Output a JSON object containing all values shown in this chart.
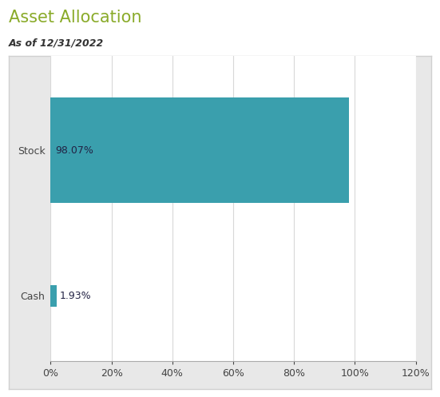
{
  "title": "Asset Allocation",
  "subtitle": "As of 12/31/2022",
  "categories": [
    "Stock",
    "Cash"
  ],
  "values": [
    98.07,
    1.93
  ],
  "labels": [
    "98.07%",
    "1.93%"
  ],
  "bar_color": "#3a9fad",
  "title_color": "#8aab2a",
  "subtitle_color": "#333333",
  "label_color": "#222244",
  "axis_label_color": "#444444",
  "background_color": "#ffffff",
  "plot_bg_color": "#ffffff",
  "chart_border_color": "#d0d0d0",
  "outer_bg_color": "#e8e8e8",
  "xlim": [
    0,
    120
  ],
  "xticks": [
    0,
    20,
    40,
    60,
    80,
    100,
    120
  ],
  "grid_color": "#d8d8d8",
  "title_fontsize": 15,
  "subtitle_fontsize": 9,
  "label_fontsize": 9,
  "ytick_fontsize": 9,
  "xtick_fontsize": 9
}
